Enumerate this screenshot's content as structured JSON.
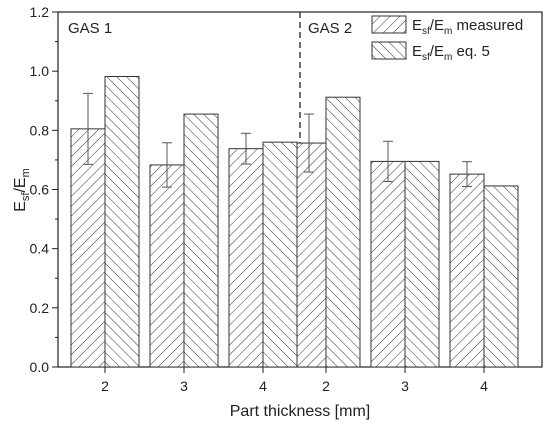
{
  "chart_data": {
    "type": "bar",
    "xlabel": "Part thickness [mm]",
    "ylabel": {
      "main": "E",
      "sub1": "sf",
      "sep": "/E",
      "sub2": "m"
    },
    "ylim": [
      0,
      1.2
    ],
    "yticks": [
      "0.0",
      "0.2",
      "0.4",
      "0.6",
      "0.8",
      "1.0",
      "1.2"
    ],
    "panels": [
      "GAS 1",
      "GAS 2"
    ],
    "categories": [
      "2",
      "3",
      "4",
      "2",
      "3",
      "4"
    ],
    "series": [
      {
        "legend": {
          "main": "E",
          "sub1": "sf",
          "sep": "/E",
          "sub2": "m",
          "suffix": " measured"
        },
        "values": [
          0.805,
          0.683,
          0.738,
          0.757,
          0.695,
          0.652
        ],
        "error": [
          0.12,
          0.075,
          0.052,
          0.098,
          0.068,
          0.042
        ],
        "hatch": "diagonal-down"
      },
      {
        "legend": {
          "main": "E",
          "sub1": "sf",
          "sep": "/E",
          "sub2": "m",
          "suffix": " eq. 5"
        },
        "values": [
          0.982,
          0.855,
          0.76,
          0.912,
          0.695,
          0.612
        ],
        "hatch": "diagonal-up"
      }
    ],
    "grid": false,
    "legend_position": "top-right",
    "colors": {
      "axis": "#222222",
      "hatch": "#333333",
      "bar_fill": "#ffffff"
    }
  }
}
